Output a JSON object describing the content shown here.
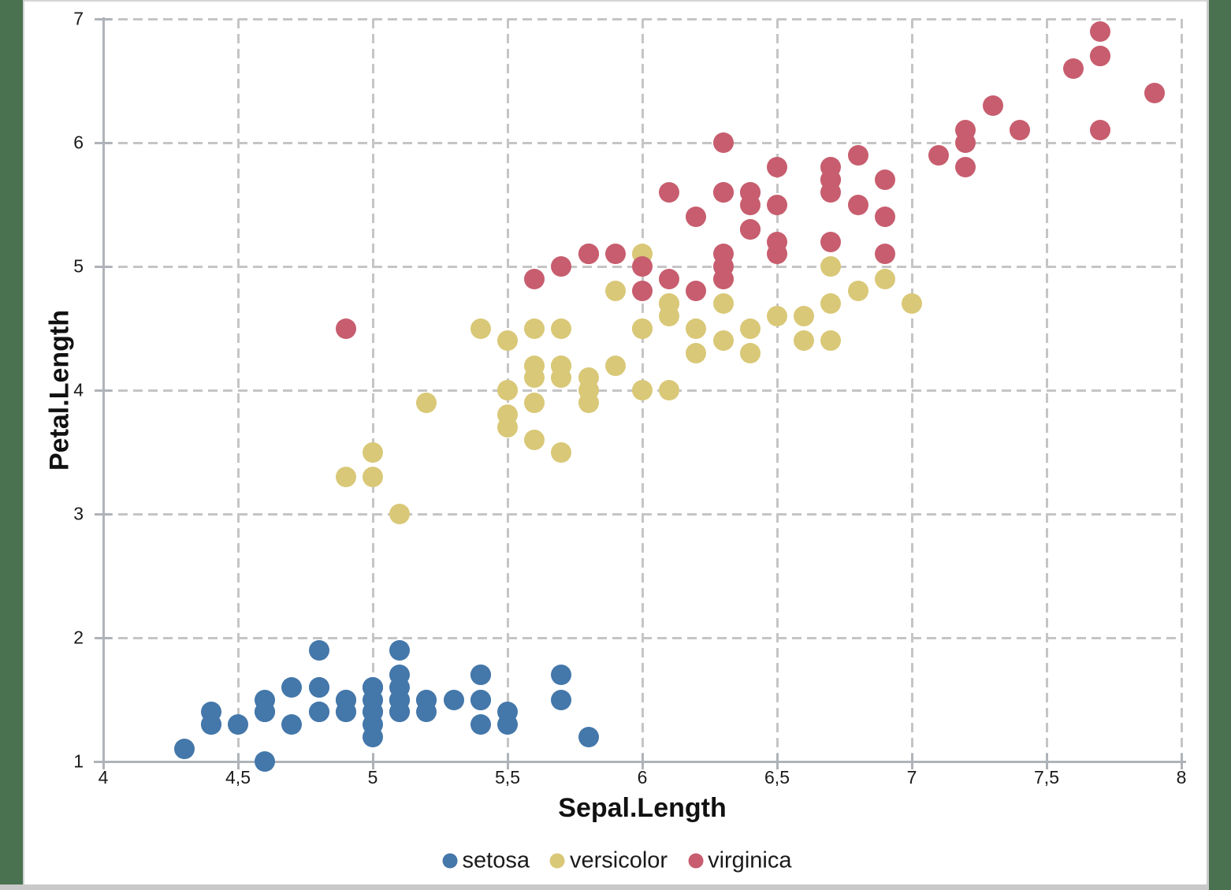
{
  "desktop": {
    "background_color": "#4A7250"
  },
  "chart": {
    "background_color": "#FFFFFF",
    "bottom_bar_color": "#C9C9C9",
    "axis_color": "#AFB3B9",
    "gridline_color": "#C5C5C5",
    "text_color": "#1A1A1A"
  },
  "chart_data": {
    "type": "scatter",
    "title": "",
    "xlabel": "Sepal.Length",
    "ylabel": "Petal.Length",
    "xlim": [
      4,
      8
    ],
    "ylim": [
      1,
      7
    ],
    "grid": "dashed",
    "legend_position": "bottom",
    "x_ticks": {
      "values": [
        4,
        4.5,
        5,
        5.5,
        6,
        6.5,
        7,
        7.5,
        8
      ],
      "labels": [
        "4",
        "4,5",
        "5",
        "5,5",
        "6",
        "6,5",
        "7",
        "7,5",
        "8"
      ]
    },
    "y_ticks": {
      "values": [
        1,
        2,
        3,
        4,
        5,
        6,
        7
      ],
      "labels": [
        "1",
        "2",
        "3",
        "4",
        "5",
        "6",
        "7"
      ]
    },
    "series": [
      {
        "name": "setosa",
        "color": "#4477AA",
        "points": [
          [
            5.1,
            1.4
          ],
          [
            4.9,
            1.4
          ],
          [
            4.7,
            1.3
          ],
          [
            4.6,
            1.5
          ],
          [
            5.0,
            1.4
          ],
          [
            5.4,
            1.7
          ],
          [
            4.6,
            1.4
          ],
          [
            5.0,
            1.5
          ],
          [
            4.4,
            1.4
          ],
          [
            4.9,
            1.5
          ],
          [
            5.4,
            1.5
          ],
          [
            4.8,
            1.6
          ],
          [
            4.8,
            1.4
          ],
          [
            4.3,
            1.1
          ],
          [
            5.8,
            1.2
          ],
          [
            5.7,
            1.5
          ],
          [
            5.4,
            1.3
          ],
          [
            5.1,
            1.4
          ],
          [
            5.7,
            1.7
          ],
          [
            5.1,
            1.5
          ],
          [
            5.4,
            1.7
          ],
          [
            5.1,
            1.5
          ],
          [
            4.6,
            1.0
          ],
          [
            5.1,
            1.7
          ],
          [
            4.8,
            1.9
          ],
          [
            5.0,
            1.6
          ],
          [
            5.0,
            1.6
          ],
          [
            5.2,
            1.5
          ],
          [
            5.2,
            1.4
          ],
          [
            4.7,
            1.6
          ],
          [
            4.8,
            1.6
          ],
          [
            5.4,
            1.5
          ],
          [
            5.2,
            1.5
          ],
          [
            5.5,
            1.4
          ],
          [
            4.9,
            1.5
          ],
          [
            5.0,
            1.2
          ],
          [
            5.5,
            1.3
          ],
          [
            4.9,
            1.4
          ],
          [
            4.4,
            1.3
          ],
          [
            5.1,
            1.5
          ],
          [
            5.0,
            1.3
          ],
          [
            4.5,
            1.3
          ],
          [
            4.4,
            1.3
          ],
          [
            5.0,
            1.6
          ],
          [
            5.1,
            1.9
          ],
          [
            4.8,
            1.4
          ],
          [
            5.1,
            1.6
          ],
          [
            4.6,
            1.4
          ],
          [
            5.3,
            1.5
          ],
          [
            5.0,
            1.4
          ]
        ]
      },
      {
        "name": "versicolor",
        "color": "#D9C877",
        "points": [
          [
            7.0,
            4.7
          ],
          [
            6.4,
            4.5
          ],
          [
            6.9,
            4.9
          ],
          [
            5.5,
            4.0
          ],
          [
            6.5,
            4.6
          ],
          [
            5.7,
            4.5
          ],
          [
            6.3,
            4.7
          ],
          [
            4.9,
            3.3
          ],
          [
            6.6,
            4.6
          ],
          [
            5.2,
            3.9
          ],
          [
            5.0,
            3.5
          ],
          [
            5.9,
            4.2
          ],
          [
            6.0,
            4.0
          ],
          [
            6.1,
            4.7
          ],
          [
            5.6,
            3.6
          ],
          [
            6.7,
            4.4
          ],
          [
            5.6,
            4.5
          ],
          [
            5.8,
            4.1
          ],
          [
            6.2,
            4.5
          ],
          [
            5.6,
            3.9
          ],
          [
            5.9,
            4.8
          ],
          [
            6.1,
            4.0
          ],
          [
            6.3,
            4.9
          ],
          [
            6.1,
            4.7
          ],
          [
            6.4,
            4.3
          ],
          [
            6.6,
            4.4
          ],
          [
            6.8,
            4.8
          ],
          [
            6.7,
            5.0
          ],
          [
            6.0,
            4.5
          ],
          [
            5.7,
            3.5
          ],
          [
            5.5,
            3.8
          ],
          [
            5.5,
            3.7
          ],
          [
            5.8,
            3.9
          ],
          [
            6.0,
            5.1
          ],
          [
            5.4,
            4.5
          ],
          [
            6.0,
            4.5
          ],
          [
            6.7,
            4.7
          ],
          [
            6.3,
            4.4
          ],
          [
            5.6,
            4.1
          ],
          [
            5.5,
            4.0
          ],
          [
            5.5,
            4.4
          ],
          [
            6.1,
            4.6
          ],
          [
            5.8,
            4.0
          ],
          [
            5.0,
            3.3
          ],
          [
            5.6,
            4.2
          ],
          [
            5.7,
            4.2
          ],
          [
            5.7,
            4.2
          ],
          [
            6.2,
            4.3
          ],
          [
            5.1,
            3.0
          ],
          [
            5.7,
            4.1
          ]
        ]
      },
      {
        "name": "virginica",
        "color": "#C75D6E",
        "points": [
          [
            6.3,
            6.0
          ],
          [
            5.8,
            5.1
          ],
          [
            7.1,
            5.9
          ],
          [
            6.3,
            5.6
          ],
          [
            6.5,
            5.8
          ],
          [
            7.6,
            6.6
          ],
          [
            4.9,
            4.5
          ],
          [
            7.3,
            6.3
          ],
          [
            6.7,
            5.8
          ],
          [
            7.2,
            6.1
          ],
          [
            6.5,
            5.1
          ],
          [
            6.4,
            5.3
          ],
          [
            6.8,
            5.5
          ],
          [
            5.7,
            5.0
          ],
          [
            5.8,
            5.1
          ],
          [
            6.4,
            5.3
          ],
          [
            6.5,
            5.5
          ],
          [
            7.7,
            6.7
          ],
          [
            7.7,
            6.9
          ],
          [
            6.0,
            5.0
          ],
          [
            6.9,
            5.7
          ],
          [
            5.6,
            4.9
          ],
          [
            7.7,
            6.7
          ],
          [
            6.3,
            4.9
          ],
          [
            6.7,
            5.7
          ],
          [
            7.2,
            6.0
          ],
          [
            6.2,
            4.8
          ],
          [
            6.1,
            4.9
          ],
          [
            6.4,
            5.6
          ],
          [
            7.2,
            5.8
          ],
          [
            7.4,
            6.1
          ],
          [
            7.9,
            6.4
          ],
          [
            6.4,
            5.6
          ],
          [
            6.3,
            5.1
          ],
          [
            6.1,
            5.6
          ],
          [
            7.7,
            6.1
          ],
          [
            6.3,
            5.6
          ],
          [
            6.4,
            5.5
          ],
          [
            6.0,
            4.8
          ],
          [
            6.9,
            5.4
          ],
          [
            6.7,
            5.6
          ],
          [
            6.9,
            5.1
          ],
          [
            5.8,
            5.1
          ],
          [
            6.8,
            5.9
          ],
          [
            6.7,
            5.7
          ],
          [
            6.7,
            5.2
          ],
          [
            6.3,
            5.0
          ],
          [
            6.5,
            5.2
          ],
          [
            6.2,
            5.4
          ],
          [
            5.9,
            5.1
          ]
        ]
      }
    ]
  }
}
